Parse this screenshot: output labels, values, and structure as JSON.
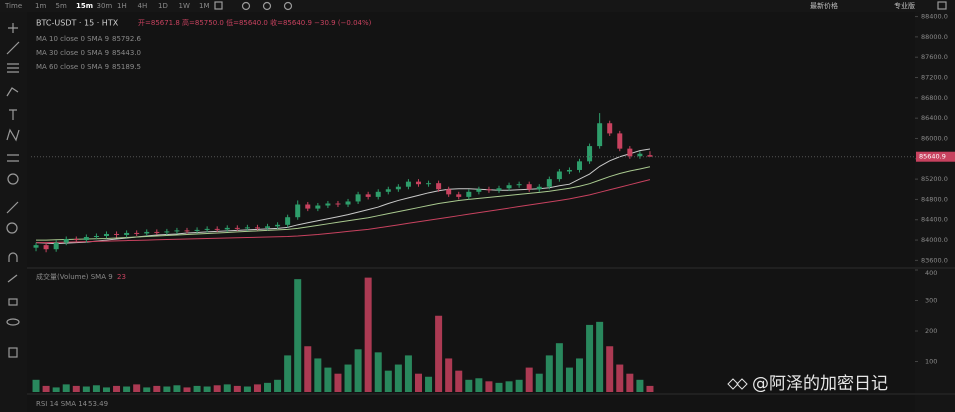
{
  "toolbar": {
    "timeframes": [
      "Time",
      "1m",
      "5m",
      "15m",
      "30m",
      "1H",
      "4H",
      "1D",
      "1W",
      "1M"
    ],
    "active": "15m",
    "price_mode": "最新价格",
    "pro": "专业版"
  },
  "chart_data": [
    {
      "type": "candlestick",
      "title": "BTC-USDT · 15 · HTX",
      "ohlc_text": "开=85671.8 高=85750.0 低=85640.0 收=85640.9 −30.9 (−0.04%)",
      "up_color": "#2e9e6b",
      "down_color": "#c8425f",
      "open": [
        83850,
        83900,
        83820,
        83950,
        84020,
        84000,
        84060,
        84080,
        84120,
        84100,
        84140,
        84130,
        84160,
        84150,
        84170,
        84190,
        84180,
        84200,
        84220,
        84210,
        84240,
        84230,
        84250,
        84240,
        84270,
        84300,
        84450,
        84700,
        84620,
        84680,
        84720,
        84700,
        84760,
        84900,
        84850,
        84950,
        85000,
        85050,
        85150,
        85100,
        85120,
        85000,
        84900,
        84850,
        84950,
        85000,
        84980,
        85020,
        85080,
        85100,
        85000,
        85050,
        85200,
        85350,
        85380,
        85550,
        85850,
        86300,
        86100,
        85800,
        85650,
        85671.8
      ],
      "high": [
        83950,
        83950,
        84000,
        84070,
        84070,
        84110,
        84130,
        84170,
        84170,
        84190,
        84190,
        84210,
        84210,
        84220,
        84240,
        84240,
        84250,
        84270,
        84270,
        84290,
        84290,
        84300,
        84300,
        84320,
        84350,
        84500,
        84780,
        84750,
        84730,
        84770,
        84770,
        84810,
        84950,
        84950,
        85000,
        85050,
        85100,
        85200,
        85200,
        85170,
        85170,
        85050,
        84950,
        85000,
        85050,
        85050,
        85070,
        85130,
        85150,
        85150,
        85100,
        85250,
        85400,
        85430,
        85600,
        85900,
        86500,
        86350,
        86150,
        85850,
        85750,
        85750
      ],
      "low": [
        83780,
        83760,
        83770,
        83900,
        83950,
        83950,
        84010,
        84030,
        84050,
        84050,
        84080,
        84080,
        84100,
        84100,
        84120,
        84130,
        84130,
        84150,
        84160,
        84160,
        84180,
        84180,
        84190,
        84190,
        84220,
        84250,
        84400,
        84570,
        84570,
        84630,
        84650,
        84650,
        84710,
        84800,
        84800,
        84900,
        84950,
        85000,
        85050,
        85050,
        84950,
        84850,
        84800,
        84800,
        84900,
        84930,
        84930,
        84970,
        85030,
        84950,
        84950,
        85000,
        85150,
        85300,
        85330,
        85500,
        85800,
        86050,
        85750,
        85600,
        85600,
        85640
      ],
      "close": [
        83900,
        83820,
        83950,
        84020,
        84000,
        84060,
        84080,
        84120,
        84100,
        84140,
        84130,
        84160,
        84150,
        84170,
        84190,
        84180,
        84200,
        84220,
        84210,
        84240,
        84230,
        84250,
        84240,
        84270,
        84300,
        84450,
        84700,
        84620,
        84680,
        84720,
        84700,
        84760,
        84900,
        84850,
        84950,
        85000,
        85050,
        85150,
        85100,
        85120,
        85000,
        84900,
        84850,
        84950,
        85000,
        84980,
        85020,
        85080,
        85100,
        85000,
        85050,
        85200,
        85350,
        85380,
        85550,
        85850,
        86300,
        86100,
        85800,
        85650,
        85700,
        85640.9
      ],
      "series": [
        {
          "name": "MA 10 close 0 SMA 9",
          "legend_value": "85792.6",
          "color": "#c9c9c9",
          "values": [
            83950,
            83940,
            83930,
            83940,
            83950,
            83960,
            83980,
            84000,
            84020,
            84040,
            84060,
            84080,
            84100,
            84110,
            84120,
            84140,
            84150,
            84160,
            84170,
            84180,
            84190,
            84200,
            84210,
            84220,
            84230,
            84250,
            84300,
            84340,
            84380,
            84420,
            84460,
            84500,
            84550,
            84600,
            84650,
            84720,
            84780,
            84830,
            84880,
            84930,
            84970,
            85000,
            85010,
            85010,
            85000,
            84990,
            84980,
            84980,
            84990,
            85000,
            85010,
            85030,
            85070,
            85100,
            85200,
            85300,
            85450,
            85560,
            85640,
            85700,
            85760,
            85792.6
          ]
        },
        {
          "name": "MA 30 close 0 SMA 9",
          "legend_value": "85443.0",
          "color": "#a9c98f",
          "values": [
            84000,
            84000,
            84005,
            84010,
            84015,
            84020,
            84025,
            84030,
            84040,
            84050,
            84060,
            84070,
            84080,
            84090,
            84100,
            84110,
            84120,
            84130,
            84140,
            84150,
            84160,
            84170,
            84180,
            84190,
            84200,
            84210,
            84230,
            84260,
            84290,
            84320,
            84350,
            84380,
            84410,
            84440,
            84480,
            84520,
            84560,
            84600,
            84640,
            84680,
            84720,
            84750,
            84780,
            84800,
            84820,
            84840,
            84860,
            84880,
            84900,
            84920,
            84940,
            84960,
            84990,
            85020,
            85060,
            85110,
            85180,
            85250,
            85310,
            85360,
            85400,
            85443
          ]
        },
        {
          "name": "MA 60 close 0 SMA 9",
          "legend_value": "85189.5",
          "color": "#c8425f",
          "values": [
            83950,
            83950,
            83955,
            83960,
            83965,
            83970,
            83975,
            83980,
            83985,
            83990,
            83995,
            84000,
            84005,
            84010,
            84015,
            84020,
            84025,
            84030,
            84035,
            84040,
            84045,
            84050,
            84055,
            84060,
            84065,
            84070,
            84080,
            84095,
            84110,
            84130,
            84150,
            84170,
            84190,
            84210,
            84240,
            84270,
            84300,
            84330,
            84360,
            84390,
            84420,
            84450,
            84480,
            84510,
            84540,
            84570,
            84600,
            84630,
            84660,
            84690,
            84720,
            84750,
            84780,
            84810,
            84850,
            84890,
            84940,
            84990,
            85040,
            85090,
            85140,
            85189.5
          ]
        }
      ],
      "ylim": [
        83450,
        88490
      ],
      "yticks": [
        {
          "value": 83600,
          "label": "83600.0"
        },
        {
          "value": 84000,
          "label": "84000.0"
        },
        {
          "value": 84400,
          "label": "84400.0"
        },
        {
          "value": 84800,
          "label": "84800.0"
        },
        {
          "value": 85200,
          "label": "85200.0"
        },
        {
          "value": 85600,
          "label": "85600.0"
        },
        {
          "value": 86000,
          "label": "86000.0"
        },
        {
          "value": 86400,
          "label": "86400.0"
        },
        {
          "value": 86800,
          "label": "86800.0"
        },
        {
          "value": 87200,
          "label": "87200.0"
        },
        {
          "value": 87600,
          "label": "87600.0"
        },
        {
          "value": 88000,
          "label": "88000.0"
        },
        {
          "value": 88400,
          "label": "88400.0"
        }
      ]
    },
    {
      "type": "volume",
      "title": "成交量(Volume) SMA 9",
      "legend_value": "23",
      "values": [
        40,
        20,
        15,
        25,
        20,
        18,
        22,
        15,
        20,
        18,
        25,
        15,
        20,
        18,
        22,
        15,
        20,
        18,
        22,
        25,
        20,
        18,
        25,
        30,
        40,
        120,
        370,
        150,
        110,
        80,
        60,
        90,
        140,
        375,
        130,
        70,
        90,
        120,
        60,
        50,
        250,
        110,
        70,
        40,
        45,
        35,
        30,
        35,
        40,
        80,
        60,
        120,
        160,
        80,
        110,
        220,
        230,
        150,
        90,
        60,
        40,
        20
      ],
      "ylim": [
        0,
        400
      ],
      "yticks": [
        100,
        200,
        300,
        400
      ]
    }
  ],
  "rsi_panel": {
    "label": "RSI 14 SMA 14",
    "value": 53.49
  },
  "watermark": "@阿泽的加密日记"
}
